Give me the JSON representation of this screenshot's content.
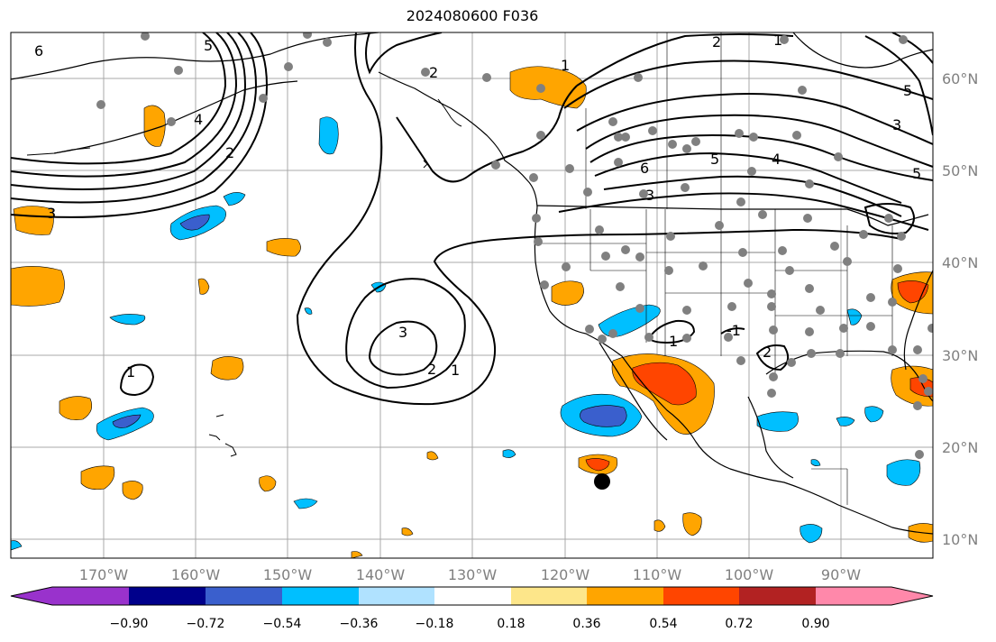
{
  "title": "2024080600 F036",
  "map": {
    "projection": "PlateCarree",
    "lon_range": [
      -180,
      -78
    ],
    "lat_range": [
      6,
      64
    ],
    "lon_ticks": [
      "170°W",
      "160°W",
      "150°W",
      "140°W",
      "130°W",
      "120°W",
      "110°W",
      "100°W",
      "90°W"
    ],
    "lat_ticks": [
      "60°N",
      "50°N",
      "40°N",
      "30°N",
      "20°N",
      "10°N"
    ],
    "gridlines": true,
    "contour_color": "#000000",
    "contour_labels": [
      "6",
      "5",
      "4",
      "3",
      "2",
      "1",
      "2",
      "3",
      "1",
      "2",
      "1",
      "6",
      "5",
      "4",
      "3",
      "2",
      "1",
      "5",
      "1",
      "-1",
      "2",
      "3",
      "5"
    ],
    "marker": "black-dot",
    "station_marker_color": "#808080"
  },
  "colorbar": {
    "colors": [
      "#9932cc",
      "#00008b",
      "#3a5fcd",
      "#00bfff",
      "#b0e2ff",
      "#ffffff",
      "#fde68a",
      "#ffa500",
      "#ff4500",
      "#b22222",
      "#ff88aa"
    ],
    "tick_labels": [
      "−0.90",
      "−0.72",
      "−0.54",
      "−0.36",
      "−0.18",
      "0.18",
      "0.36",
      "0.54",
      "0.72",
      "0.90"
    ],
    "extend": "both"
  }
}
